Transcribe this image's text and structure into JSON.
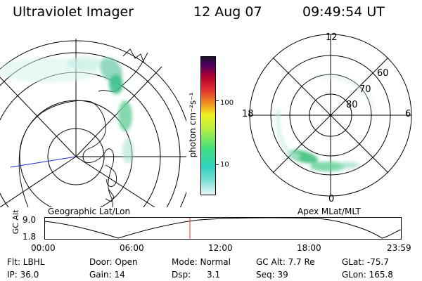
{
  "header": {
    "instrument": "Ultraviolet Imager",
    "date": "12 Aug 07",
    "time": "09:49:54 UT"
  },
  "left_map": {
    "caption": "Geographic Lat/Lon"
  },
  "right_map": {
    "caption": "Apex MLat/MLT",
    "mlt_labels": [
      "12",
      "18",
      "6",
      "0"
    ],
    "lat_labels": [
      "60",
      "70",
      "80"
    ]
  },
  "colorbar": {
    "unit_label": "photon cm⁻²s⁻¹",
    "ticks": [
      "100",
      "10"
    ],
    "scale": "log"
  },
  "altitude_plot": {
    "axis_label": "GC Alt",
    "y_ticks": [
      "9.0",
      "1.8"
    ],
    "x_ticks": [
      "00:00",
      "06:00",
      "12:00",
      "18:00",
      "23:59"
    ],
    "current_time_color": "#e03020"
  },
  "footer": {
    "row1": [
      {
        "key": "flt",
        "text": "Flt: LBHL"
      },
      {
        "key": "door",
        "text": "Door: Open"
      },
      {
        "key": "mode",
        "text": "Mode: Normal"
      },
      {
        "key": "gcalt",
        "text": "GC Alt: 7.7 Re"
      },
      {
        "key": "glat",
        "text": "GLat: -75.7"
      }
    ],
    "row2": [
      {
        "key": "ip",
        "text": "IP: 36.0"
      },
      {
        "key": "gain",
        "text": "Gain: 14"
      },
      {
        "key": "dsp",
        "text": "Dsp:      3.1"
      },
      {
        "key": "seq",
        "text": "Seq: 39"
      },
      {
        "key": "glon",
        "text": "GLon: 165.8"
      }
    ]
  }
}
